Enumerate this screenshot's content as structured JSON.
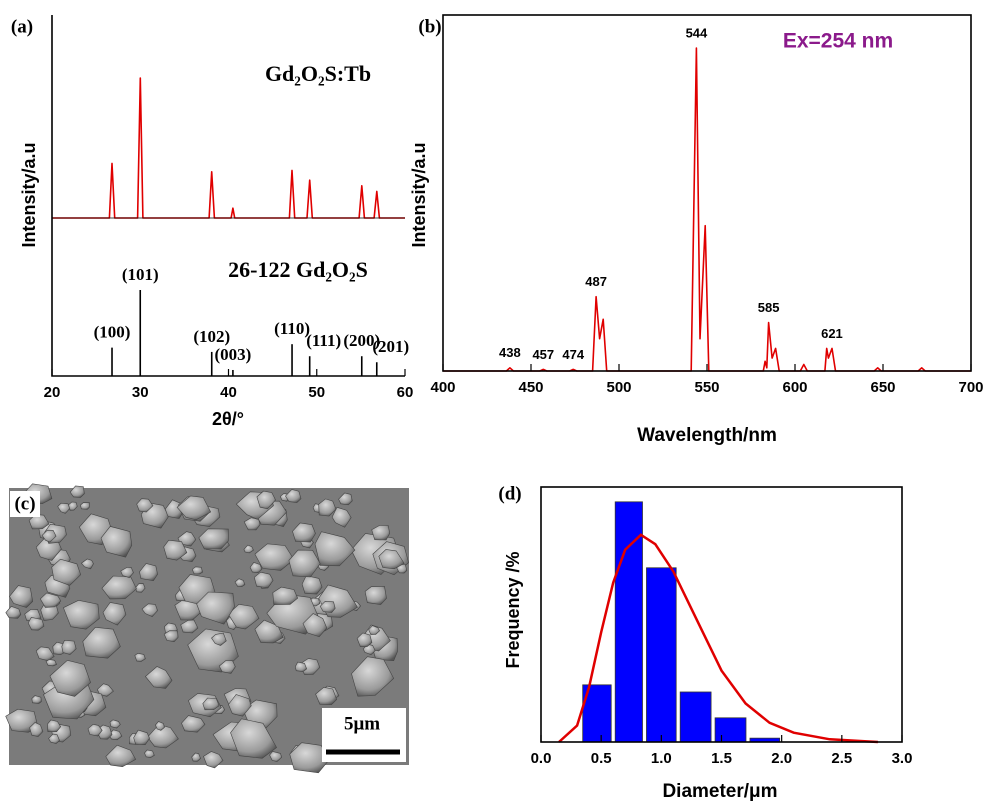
{
  "chart_data": [
    {
      "type": "line",
      "panel_label": "(a)",
      "ylabel": "Intensity/a.u",
      "annotation": "Gd₂O₂S:Tb",
      "color": "#e00000",
      "x": [
        20,
        26.5,
        26.8,
        27.1,
        29.7,
        30,
        30.3,
        37.8,
        38.1,
        38.4,
        40.3,
        40.5,
        40.7,
        46.9,
        47.2,
        47.5,
        48.9,
        49.2,
        49.5,
        54.8,
        55.1,
        55.4,
        56.5,
        56.8,
        57.1,
        60
      ],
      "values": [
        0,
        0,
        39,
        0,
        0,
        100,
        0,
        0,
        33,
        0,
        0,
        7,
        0,
        0,
        34,
        0,
        0,
        27,
        0,
        0,
        23,
        0,
        0,
        19,
        0,
        0
      ],
      "xlim": [
        20,
        60
      ],
      "ylim": [
        0,
        100
      ]
    },
    {
      "type": "stick",
      "annotation": "26-122 Gd₂O₂S",
      "xlabel": "2θ/°",
      "color": "#000000",
      "x": [
        26.8,
        30,
        38.1,
        40.5,
        47.2,
        49.2,
        55.1,
        56.8
      ],
      "values": [
        33,
        100,
        28,
        7,
        37,
        23,
        23,
        16
      ],
      "labels": [
        "(100)",
        "(101)",
        "(102)",
        "(003)",
        "(110)",
        "(111)",
        "(200)",
        "(201)"
      ],
      "xlim": [
        20,
        60
      ],
      "xticks": [
        20,
        30,
        40,
        50,
        60
      ],
      "ylim": [
        0,
        100
      ]
    },
    {
      "type": "line",
      "panel_label": "(b)",
      "ylabel": "Intensity/a.u",
      "xlabel": "Wavelength/nm",
      "annotation": "Ex=254 nm",
      "annotation_color": "#8b1a8b",
      "color": "#e00000",
      "x": [
        400,
        436,
        438,
        440,
        455,
        457,
        459,
        472,
        474,
        476,
        485,
        487,
        489,
        491,
        493,
        541,
        544,
        546,
        549,
        551,
        582,
        583,
        584,
        585,
        587,
        589,
        591,
        603,
        605,
        607,
        617,
        618,
        619,
        621,
        623,
        645,
        647,
        649,
        670,
        672,
        674,
        700
      ],
      "values": [
        0,
        0,
        1,
        0,
        0,
        0.5,
        0,
        0,
        0.5,
        0,
        0,
        23,
        10,
        16,
        0,
        0,
        100,
        10,
        45,
        0,
        0,
        3,
        1,
        15,
        4,
        7,
        0,
        0,
        2,
        0,
        0,
        7,
        4,
        7,
        0,
        0,
        1,
        0,
        0,
        1,
        0,
        0
      ],
      "peak_labels": [
        438,
        457,
        474,
        487,
        544,
        585,
        621
      ],
      "xlim": [
        400,
        700
      ],
      "xticks": [
        400,
        450,
        500,
        550,
        600,
        650,
        700
      ],
      "ylim": [
        0,
        100
      ]
    },
    {
      "type": "histogram",
      "panel_label": "(d)",
      "ylabel": "Frequency /%",
      "xlabel": "Diameter/μm",
      "color": "#0000ff",
      "fit_color": "#e00000",
      "bins": [
        0.33,
        0.6,
        0.86,
        1.14,
        1.43,
        1.72,
        2.0
      ],
      "values": [
        10.4,
        43.7,
        31.7,
        9.1,
        4.4,
        0.7
      ],
      "fit": {
        "x": [
          0.15,
          0.3,
          0.4,
          0.5,
          0.6,
          0.7,
          0.83,
          0.95,
          1.1,
          1.3,
          1.5,
          1.7,
          1.9,
          2.1,
          2.4,
          2.8
        ],
        "values": [
          0,
          3,
          10,
          20,
          29,
          35,
          37.7,
          36,
          31,
          22,
          13,
          7,
          3.5,
          1.7,
          0.5,
          0
        ]
      },
      "xlim": [
        0,
        3
      ],
      "ylim": [
        0,
        46.4
      ],
      "xticks": [
        {
          "value": 0,
          "label": "0.0"
        },
        {
          "value": 0.5,
          "label": "0.5"
        },
        {
          "value": 1,
          "label": "1.0"
        },
        {
          "value": 1.5,
          "label": "1.5"
        },
        {
          "value": 2,
          "label": "2.0"
        },
        {
          "value": 2.5,
          "label": "2.5"
        },
        {
          "value": 3,
          "label": "3.0"
        }
      ]
    }
  ],
  "image_panel": {
    "panel_label": "(c)",
    "scale_bar": "5μm"
  }
}
